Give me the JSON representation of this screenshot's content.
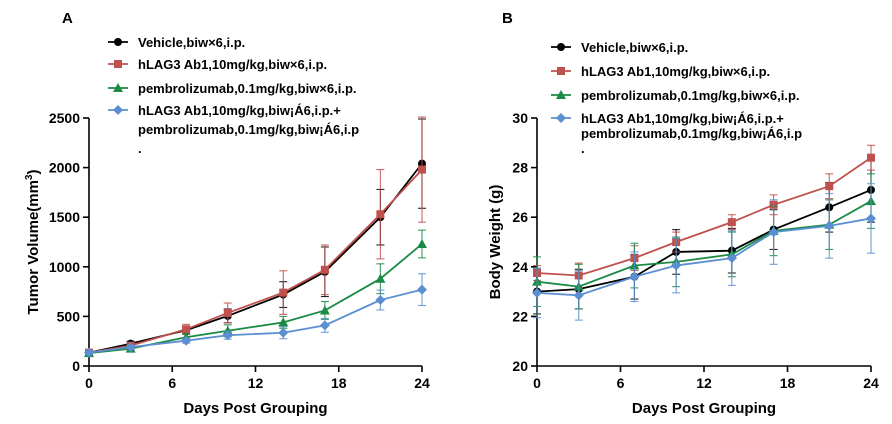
{
  "series_styles": [
    {
      "color": "#000000",
      "marker": "circle"
    },
    {
      "color": "#c0504d",
      "marker": "square"
    },
    {
      "color": "#1a8a45",
      "marker": "triangle"
    },
    {
      "color": "#5b8fd1",
      "marker": "diamond"
    }
  ],
  "chart_data": [
    {
      "type": "line",
      "panel_label": "A",
      "xlabel": "Days Post Grouping",
      "ylabel": "Tumor Volume(mm",
      "ylabel_sup": "3",
      "ylabel_close": ")",
      "xlim": [
        0,
        24
      ],
      "ylim": [
        0,
        2500
      ],
      "xticks": [
        0,
        6,
        12,
        18,
        24
      ],
      "yticks": [
        0,
        500,
        1000,
        1500,
        2000,
        2500
      ],
      "x": [
        0,
        3,
        7,
        10,
        14,
        17,
        21,
        24
      ],
      "grid": false,
      "legend_position": "top-left",
      "series": [
        {
          "name_lines": [
            "Vehicle,biw×6,i.p."
          ],
          "values": [
            135,
            225,
            360,
            505,
            720,
            950,
            1500,
            2040
          ],
          "errors": [
            15,
            25,
            40,
            70,
            130,
            250,
            280,
            450
          ]
        },
        {
          "name_lines": [
            "hLAG3 Ab1,10mg/kg,biw×6,i.p."
          ],
          "values": [
            135,
            205,
            370,
            535,
            740,
            970,
            1530,
            1980
          ],
          "errors": [
            15,
            25,
            50,
            100,
            220,
            250,
            450,
            530
          ]
        },
        {
          "name_lines": [
            "pembrolizumab,0.1mg/kg,biw×6,i.p."
          ],
          "values": [
            130,
            175,
            290,
            355,
            440,
            560,
            880,
            1230
          ],
          "errors": [
            15,
            20,
            35,
            60,
            60,
            90,
            150,
            140
          ]
        },
        {
          "name_lines": [
            "hLAG3 Ab1,10mg/kg,biw¡Á6,i.p.+",
            "pembrolizumab,0.1mg/kg,biw¡Á6,i.p",
            "."
          ],
          "values": [
            135,
            190,
            255,
            310,
            335,
            410,
            665,
            770
          ],
          "errors": [
            15,
            20,
            25,
            40,
            60,
            70,
            100,
            160
          ]
        }
      ]
    },
    {
      "type": "line",
      "panel_label": "B",
      "xlabel": "Days Post Grouping",
      "ylabel": "Body Weight (g)",
      "xlim": [
        0,
        24
      ],
      "ylim": [
        20,
        30
      ],
      "xticks": [
        0,
        6,
        12,
        18,
        24
      ],
      "yticks": [
        20,
        22,
        24,
        26,
        28,
        30
      ],
      "x": [
        0,
        3,
        7,
        10,
        14,
        17,
        21,
        24
      ],
      "grid": false,
      "legend_position": "top-left",
      "series": [
        {
          "name_lines": [
            "Vehicle,biw×6,i.p."
          ],
          "values": [
            23.0,
            23.1,
            23.6,
            24.6,
            24.65,
            25.5,
            26.4,
            27.1
          ],
          "errors": [
            0.9,
            0.8,
            0.9,
            0.9,
            0.9,
            0.8,
            1.0,
            1.3
          ]
        },
        {
          "name_lines": [
            "hLAG3 Ab1,10mg/kg,biw×6,i.p."
          ],
          "values": [
            23.75,
            23.65,
            24.35,
            25.0,
            25.8,
            26.5,
            27.25,
            28.4
          ],
          "errors": [
            0.3,
            0.5,
            0.5,
            0.4,
            0.3,
            0.4,
            0.5,
            0.5
          ]
        },
        {
          "name_lines": [
            "pembrolizumab,0.1mg/kg,biw×6,i.p."
          ],
          "values": [
            23.4,
            23.2,
            24.05,
            24.2,
            24.5,
            25.45,
            25.7,
            26.65
          ],
          "errors": [
            1.0,
            0.9,
            0.9,
            1.0,
            0.9,
            1.0,
            1.0,
            1.1
          ]
        },
        {
          "name_lines": [
            "hLAG3 Ab1,10mg/kg,biw¡Á6,i.p.+",
            "pembrolizumab,0.1mg/kg,biw¡Á6,i.p",
            "."
          ],
          "values": [
            22.95,
            22.85,
            23.6,
            24.05,
            24.35,
            25.4,
            25.65,
            25.95
          ],
          "errors": [
            1.0,
            1.0,
            1.0,
            1.1,
            1.1,
            1.3,
            1.3,
            1.4
          ]
        }
      ]
    }
  ]
}
